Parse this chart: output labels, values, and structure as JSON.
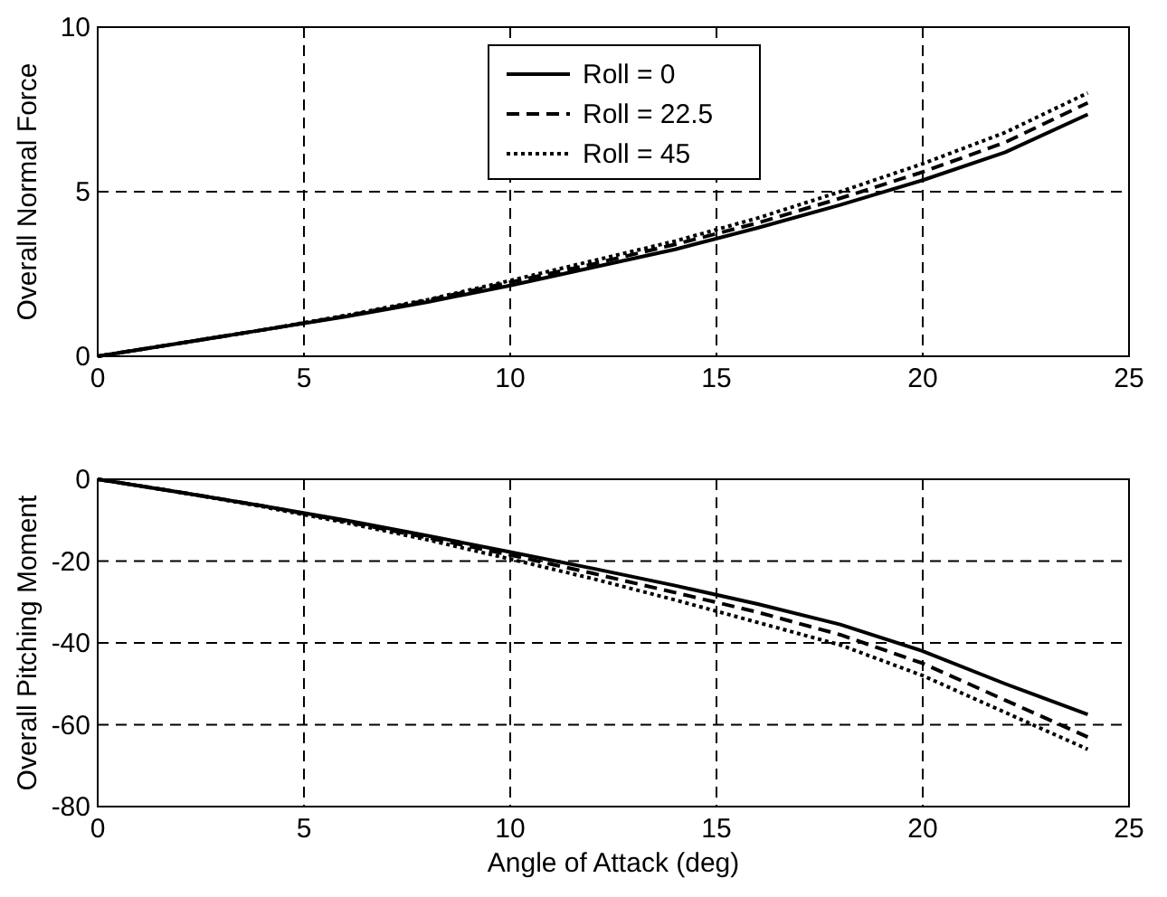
{
  "chart_data": [
    {
      "type": "line",
      "ylabel": "Overall Normal Force",
      "x": [
        0,
        2,
        4,
        6,
        8,
        10,
        12,
        14,
        16,
        18,
        20,
        22,
        24
      ],
      "xlim": [
        0,
        25
      ],
      "xticks": [
        0,
        5,
        10,
        15,
        20,
        25
      ],
      "ylim": [
        0,
        10
      ],
      "yticks": [
        0,
        5,
        10
      ],
      "grid": true,
      "legend": "top",
      "series": [
        {
          "name": "Roll = 0",
          "color": "#000000",
          "line_style": "solid",
          "values": [
            0,
            0.4,
            0.8,
            1.2,
            1.65,
            2.15,
            2.7,
            3.25,
            3.9,
            4.6,
            5.35,
            6.2,
            7.35
          ]
        },
        {
          "name": "Roll = 22.5",
          "color": "#000000",
          "line_style": "dashed",
          "values": [
            0,
            0.4,
            0.8,
            1.22,
            1.7,
            2.25,
            2.8,
            3.4,
            4.05,
            4.8,
            5.6,
            6.5,
            7.7
          ]
        },
        {
          "name": "Roll = 45",
          "color": "#000000",
          "line_style": "dotted",
          "values": [
            0,
            0.4,
            0.8,
            1.24,
            1.72,
            2.3,
            2.9,
            3.5,
            4.2,
            5.0,
            5.85,
            6.8,
            8.0
          ]
        }
      ]
    },
    {
      "type": "line",
      "xlabel": "Angle of Attack (deg)",
      "ylabel": "Overall Pitching Moment",
      "x": [
        0,
        2,
        4,
        6,
        8,
        10,
        12,
        14,
        16,
        18,
        20,
        22,
        24
      ],
      "xlim": [
        0,
        25
      ],
      "xticks": [
        0,
        5,
        10,
        15,
        20,
        25
      ],
      "ylim": [
        -80,
        0
      ],
      "yticks": [
        -80,
        -60,
        -40,
        -20,
        0
      ],
      "grid": true,
      "series": [
        {
          "color": "#000000",
          "line_style": "solid",
          "values": [
            0,
            -3.2,
            -6.5,
            -10,
            -13.8,
            -17.8,
            -21.8,
            -26,
            -30.5,
            -35.5,
            -42,
            -50,
            -57.5
          ]
        },
        {
          "color": "#000000",
          "line_style": "dashed",
          "values": [
            0,
            -3.2,
            -6.5,
            -10.3,
            -14.3,
            -18.5,
            -23,
            -27.7,
            -32.5,
            -38,
            -45,
            -54,
            -63
          ]
        },
        {
          "color": "#000000",
          "line_style": "dotted",
          "values": [
            0,
            -3.2,
            -6.7,
            -10.6,
            -14.8,
            -19.5,
            -24.3,
            -29.5,
            -35,
            -40.5,
            -48,
            -57,
            -66
          ]
        }
      ]
    }
  ]
}
